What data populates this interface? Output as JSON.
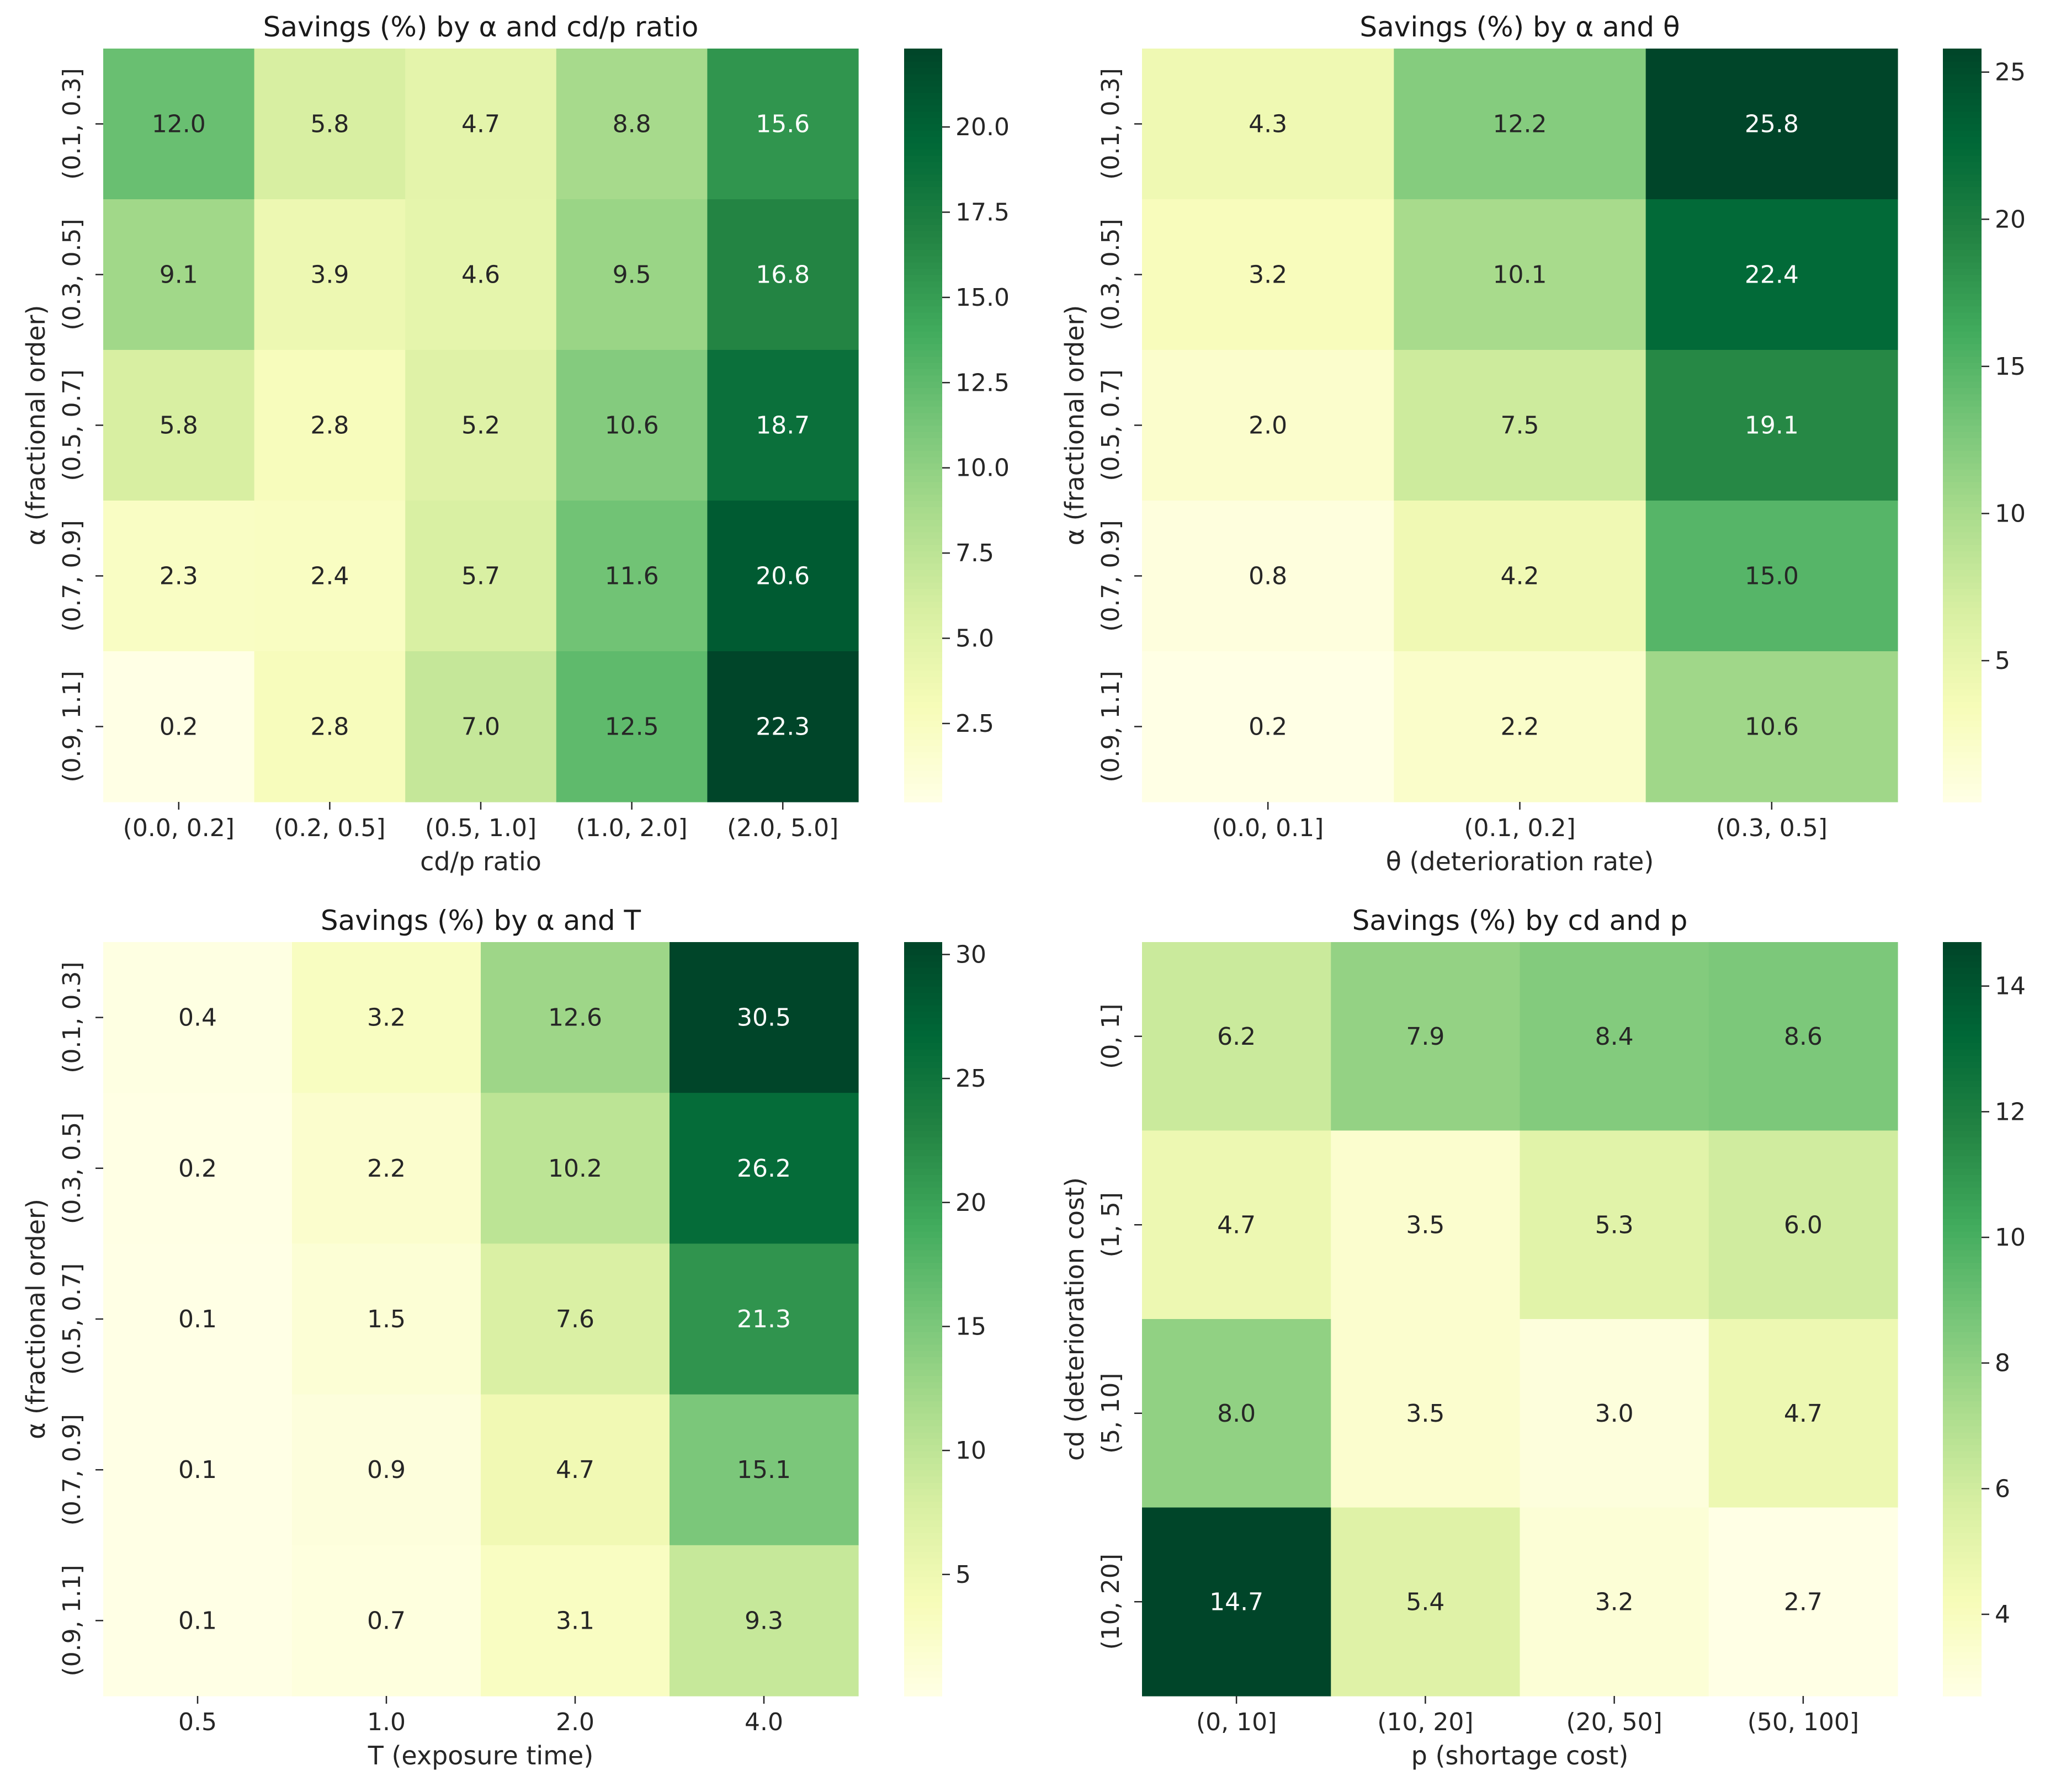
{
  "chart_data": [
    {
      "type": "heatmap",
      "title": "Savings (%) by α and cd/p ratio",
      "xlabel": "cd/p ratio",
      "ylabel": "α (fractional order)",
      "x_categories": [
        "(0.0, 0.2]",
        "(0.2, 0.5]",
        "(0.5, 1.0]",
        "(1.0, 2.0]",
        "(2.0, 5.0]"
      ],
      "y_categories": [
        "(0.1, 0.3]",
        "(0.3, 0.5]",
        "(0.5, 0.7]",
        "(0.7, 0.9]",
        "(0.9, 1.1]"
      ],
      "values": [
        [
          12.0,
          5.8,
          4.7,
          8.8,
          15.6
        ],
        [
          9.1,
          3.9,
          4.6,
          9.5,
          16.8
        ],
        [
          5.8,
          2.8,
          5.2,
          10.6,
          18.7
        ],
        [
          2.3,
          2.4,
          5.7,
          11.6,
          20.6
        ],
        [
          0.2,
          2.8,
          7.0,
          12.5,
          22.3
        ]
      ],
      "colorbar": {
        "min": 0.2,
        "max": 22.3,
        "ticks": [
          2.5,
          5.0,
          7.5,
          10.0,
          12.5,
          15.0,
          17.5,
          20.0
        ],
        "tick_labels": [
          "2.5",
          "5.0",
          "7.5",
          "10.0",
          "12.5",
          "15.0",
          "17.5",
          "20.0"
        ]
      },
      "colormap": "YlGn"
    },
    {
      "type": "heatmap",
      "title": "Savings (%) by α and θ",
      "xlabel": "θ (deterioration rate)",
      "ylabel": "α (fractional order)",
      "x_categories": [
        "(0.0, 0.1]",
        "(0.1, 0.2]",
        "(0.3, 0.5]"
      ],
      "y_categories": [
        "(0.1, 0.3]",
        "(0.3, 0.5]",
        "(0.5, 0.7]",
        "(0.7, 0.9]",
        "(0.9, 1.1]"
      ],
      "values": [
        [
          4.3,
          12.2,
          25.8
        ],
        [
          3.2,
          10.1,
          22.4
        ],
        [
          2.0,
          7.5,
          19.1
        ],
        [
          0.8,
          4.2,
          15.0
        ],
        [
          0.2,
          2.2,
          10.6
        ]
      ],
      "colorbar": {
        "min": 0.2,
        "max": 25.8,
        "ticks": [
          5,
          10,
          15,
          20,
          25
        ],
        "tick_labels": [
          "5",
          "10",
          "15",
          "20",
          "25"
        ]
      },
      "colormap": "YlGn"
    },
    {
      "type": "heatmap",
      "title": "Savings (%) by α and T",
      "xlabel": "T (exposure time)",
      "ylabel": "α (fractional order)",
      "x_categories": [
        "0.5",
        "1.0",
        "2.0",
        "4.0"
      ],
      "y_categories": [
        "(0.1, 0.3]",
        "(0.3, 0.5]",
        "(0.5, 0.7]",
        "(0.7, 0.9]",
        "(0.9, 1.1]"
      ],
      "values": [
        [
          0.4,
          3.2,
          12.6,
          30.5
        ],
        [
          0.2,
          2.2,
          10.2,
          26.2
        ],
        [
          0.1,
          1.5,
          7.6,
          21.3
        ],
        [
          0.1,
          0.9,
          4.7,
          15.1
        ],
        [
          0.1,
          0.7,
          3.1,
          9.3
        ]
      ],
      "colorbar": {
        "min": 0.1,
        "max": 30.5,
        "ticks": [
          5,
          10,
          15,
          20,
          25,
          30
        ],
        "tick_labels": [
          "5",
          "10",
          "15",
          "20",
          "25",
          "30"
        ]
      },
      "colormap": "YlGn"
    },
    {
      "type": "heatmap",
      "title": "Savings (%) by cd and p",
      "xlabel": "p (shortage cost)",
      "ylabel": "cd (deterioration cost)",
      "x_categories": [
        "(0, 10]",
        "(10, 20]",
        "(20, 50]",
        "(50, 100]"
      ],
      "y_categories": [
        "(0, 1]",
        "(1, 5]",
        "(5, 10]",
        "(10, 20]"
      ],
      "values": [
        [
          6.2,
          7.9,
          8.4,
          8.6
        ],
        [
          4.7,
          3.5,
          5.3,
          6.0
        ],
        [
          8.0,
          3.5,
          3.0,
          4.7
        ],
        [
          14.7,
          5.4,
          3.2,
          2.7
        ]
      ],
      "colorbar": {
        "min": 2.7,
        "max": 14.7,
        "ticks": [
          4,
          6,
          8,
          10,
          12,
          14
        ],
        "tick_labels": [
          "4",
          "6",
          "8",
          "10",
          "12",
          "14"
        ]
      },
      "colormap": "YlGn"
    }
  ]
}
